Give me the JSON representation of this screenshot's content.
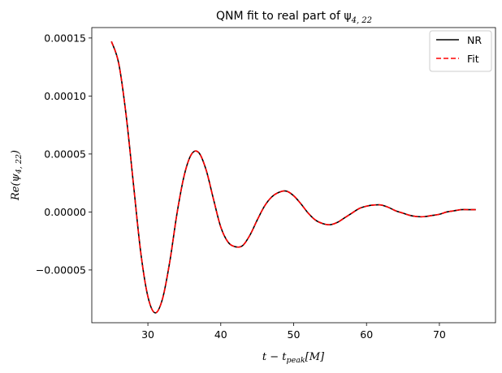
{
  "chart_data": {
    "type": "line",
    "title": "QNM fit to real part of ψ",
    "title_sub": "4, 22",
    "xlabel": "t − t",
    "xlabel_sub": "peak",
    "xlabel_unit": "[M]",
    "ylabel": "Re(ψ",
    "ylabel_sub": "4, 22",
    "ylabel_close": ")",
    "xlim": [
      22.3,
      77.7
    ],
    "ylim": [
      -9.55e-05,
      0.000159
    ],
    "xticks": [
      30,
      40,
      50,
      60,
      70
    ],
    "xtick_labels": [
      "30",
      "40",
      "50",
      "60",
      "70"
    ],
    "yticks": [
      -5e-05,
      0.0,
      5e-05,
      0.0001,
      0.00015
    ],
    "ytick_labels": [
      "−0.00005",
      "0.00000",
      "0.00005",
      "0.00010",
      "0.00015"
    ],
    "legend_position": "top-right",
    "grid": false,
    "series": [
      {
        "name": "NR",
        "color": "#000000",
        "style": "solid",
        "x": [
          25.0,
          26.0,
          27.0,
          28.0,
          29.0,
          30.0,
          31.0,
          32.0,
          33.0,
          34.0,
          35.0,
          36.0,
          37.0,
          38.0,
          39.0,
          40.0,
          41.0,
          42.0,
          43.0,
          44.0,
          45.0,
          46.0,
          47.0,
          48.0,
          49.0,
          50.0,
          51.0,
          52.0,
          53.0,
          54.0,
          55.0,
          56.0,
          57.0,
          58.0,
          59.0,
          60.0,
          61.0,
          62.0,
          63.0,
          64.0,
          65.0,
          66.0,
          67.0,
          68.0,
          69.0,
          70.0,
          71.0,
          72.0,
          73.0,
          74.0,
          75.0
        ],
        "y": [
          0.000147,
          0.000128,
          8.4e-05,
          2.5e-05,
          -3.4e-05,
          -7.3e-05,
          -8.7e-05,
          -7.5e-05,
          -4.3e-05,
          -1e-06,
          3.2e-05,
          5e-05,
          5.1e-05,
          3.6e-05,
          1.1e-05,
          -1.3e-05,
          -2.6e-05,
          -3e-05,
          -2.9e-05,
          -2e-05,
          -7e-06,
          5e-06,
          1.3e-05,
          1.7e-05,
          1.8e-05,
          1.4e-05,
          7e-06,
          -1e-06,
          -7e-06,
          -1e-05,
          -1.1e-05,
          -9e-06,
          -5e-06,
          -1e-06,
          3e-06,
          5e-06,
          6e-06,
          6e-06,
          4e-06,
          1e-06,
          -1e-06,
          -3e-06,
          -4e-06,
          -4e-06,
          -3e-06,
          -2e-06,
          0.0,
          1e-06,
          2e-06,
          2e-06,
          2e-06
        ]
      },
      {
        "name": "Fit",
        "color": "#ff0000",
        "style": "dashed",
        "x": [
          25.0,
          26.0,
          27.0,
          28.0,
          29.0,
          30.0,
          31.0,
          32.0,
          33.0,
          34.0,
          35.0,
          36.0,
          37.0,
          38.0,
          39.0,
          40.0,
          41.0,
          42.0,
          43.0,
          44.0,
          45.0,
          46.0,
          47.0,
          48.0,
          49.0,
          50.0,
          51.0,
          52.0,
          53.0,
          54.0,
          55.0,
          56.0,
          57.0,
          58.0,
          59.0,
          60.0,
          61.0,
          62.0,
          63.0,
          64.0,
          65.0,
          66.0,
          67.0,
          68.0,
          69.0,
          70.0,
          71.0,
          72.0,
          73.0,
          74.0,
          75.0
        ],
        "y": [
          0.000147,
          0.000128,
          8.4e-05,
          2.5e-05,
          -3.4e-05,
          -7.3e-05,
          -8.7e-05,
          -7.5e-05,
          -4.3e-05,
          -1e-06,
          3.2e-05,
          5e-05,
          5.1e-05,
          3.6e-05,
          1.1e-05,
          -1.3e-05,
          -2.6e-05,
          -3e-05,
          -2.9e-05,
          -2e-05,
          -7e-06,
          5e-06,
          1.3e-05,
          1.7e-05,
          1.8e-05,
          1.4e-05,
          7e-06,
          -1e-06,
          -7e-06,
          -1e-05,
          -1.1e-05,
          -9e-06,
          -5e-06,
          -1e-06,
          3e-06,
          5e-06,
          6e-06,
          6e-06,
          4e-06,
          1e-06,
          -1e-06,
          -3e-06,
          -4e-06,
          -4e-06,
          -3e-06,
          -2e-06,
          0.0,
          1e-06,
          2e-06,
          2e-06,
          2e-06
        ]
      }
    ]
  }
}
